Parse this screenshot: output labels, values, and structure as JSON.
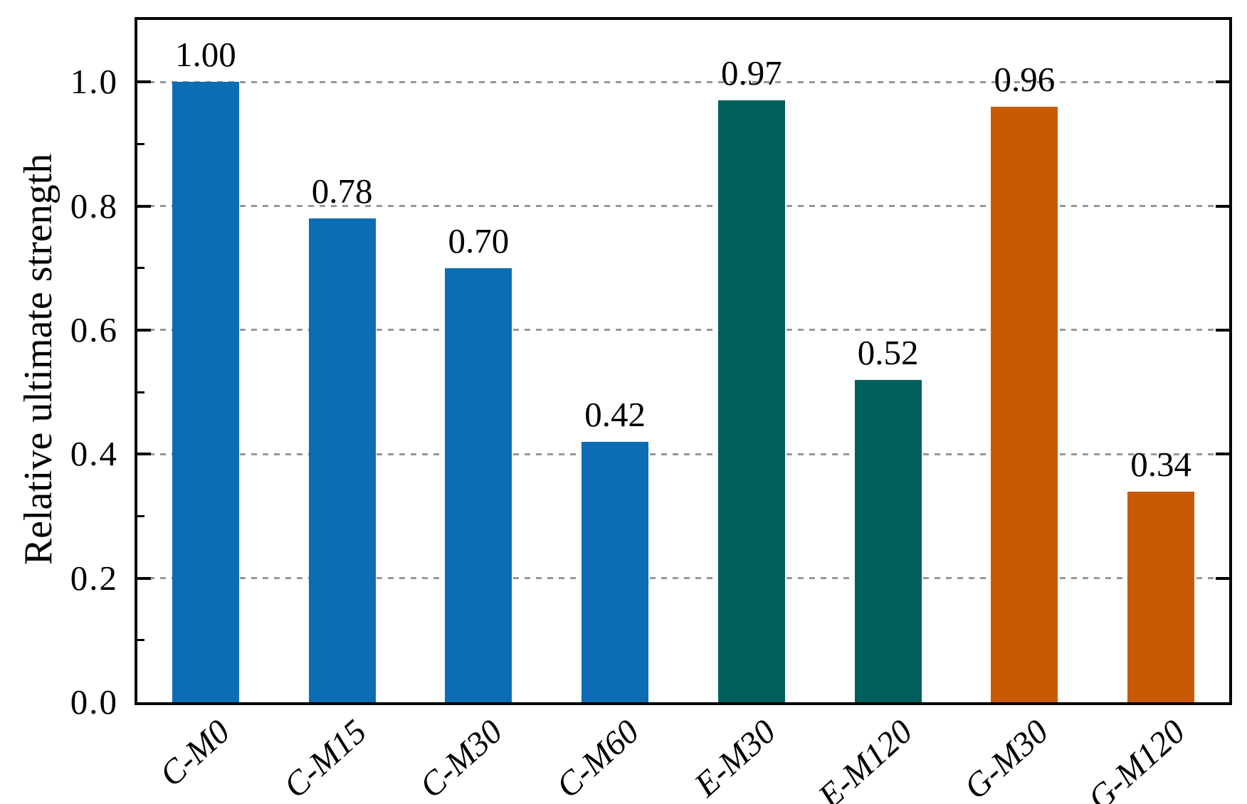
{
  "chart_data": {
    "type": "bar",
    "title": "",
    "xlabel": "",
    "ylabel": "Relative ultimate strength",
    "categories": [
      "C-M0",
      "C-M15",
      "C-M30",
      "C-M60",
      "E-M30",
      "E-M120",
      "G-M30",
      "G-M120"
    ],
    "values": [
      1.0,
      0.78,
      0.7,
      0.42,
      0.97,
      0.52,
      0.96,
      0.34
    ],
    "value_labels": [
      "1.00",
      "0.78",
      "0.70",
      "0.42",
      "0.97",
      "0.52",
      "0.96",
      "0.34"
    ],
    "bar_colors": [
      "#0c6db4",
      "#0c6db4",
      "#0c6db4",
      "#0c6db4",
      "#00605c",
      "#00605c",
      "#c85a06",
      "#c85a06"
    ],
    "color_groups": {
      "C-series": "#0c6db4",
      "E-series": "#00605c",
      "G-series": "#c85a06"
    },
    "ylim": [
      0,
      1.1
    ],
    "yticks": [
      {
        "value": 0.0,
        "label": "0.0"
      },
      {
        "value": 0.2,
        "label": "0.2"
      },
      {
        "value": 0.4,
        "label": "0.4"
      },
      {
        "value": 0.6,
        "label": "0.6"
      },
      {
        "value": 0.8,
        "label": "0.8"
      },
      {
        "value": 1.0,
        "label": "1.0"
      }
    ],
    "minor_yticks": [
      0.1,
      0.3,
      0.5,
      0.7,
      0.9
    ],
    "gridlines": {
      "values": [
        0.2,
        0.4,
        0.6,
        0.8,
        1.0
      ],
      "style": "dashed",
      "color": "#979797",
      "orientation": "horizontal"
    },
    "axis_color": "#000000",
    "legend_position": "none",
    "x_tick_label_rotation_deg": 42,
    "x_tick_label_style": "italic"
  }
}
